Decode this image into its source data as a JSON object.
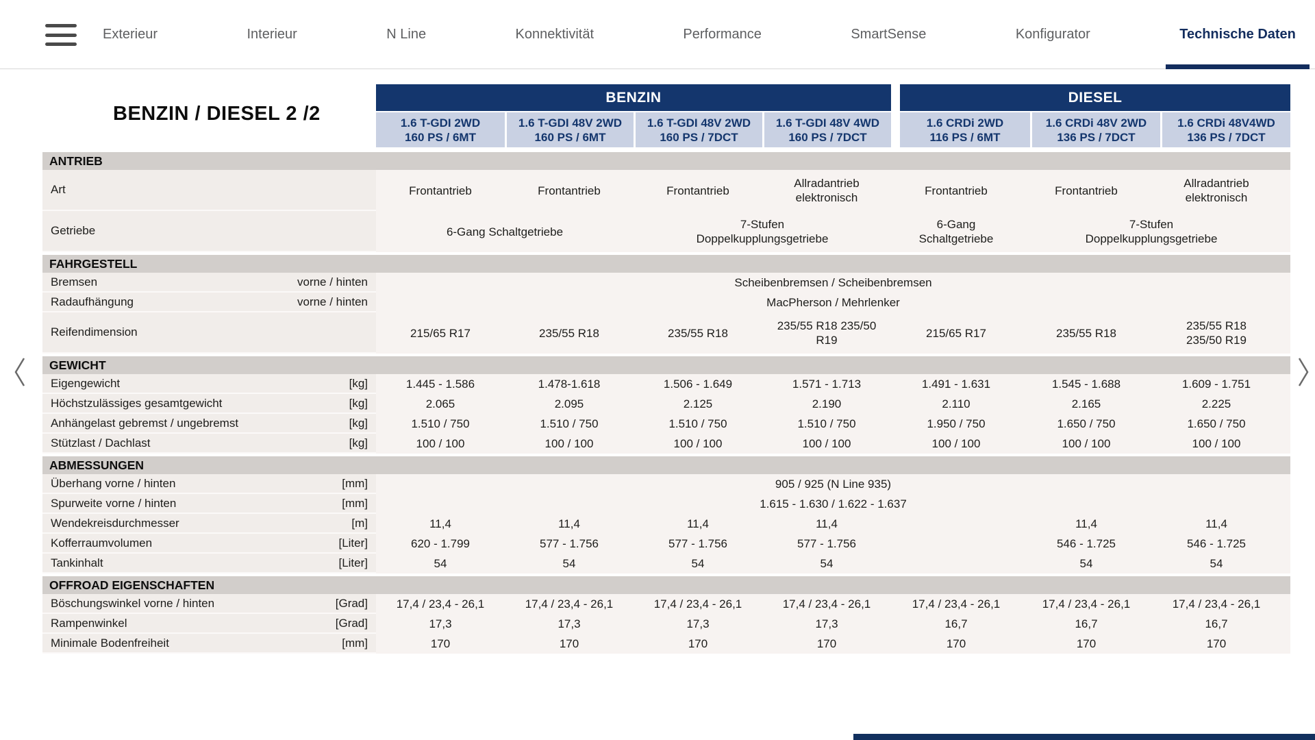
{
  "nav": {
    "items": [
      {
        "label": "Exterieur"
      },
      {
        "label": "Interieur"
      },
      {
        "label": "N Line"
      },
      {
        "label": "Konnektivität"
      },
      {
        "label": "Performance"
      },
      {
        "label": "SmartSense"
      },
      {
        "label": "Konfigurator"
      },
      {
        "label": "Technische Daten"
      }
    ],
    "active": "Technische Daten"
  },
  "table": {
    "title": "BENZIN / DIESEL 2 /2",
    "groups": [
      {
        "label": "BENZIN",
        "span": 4
      },
      {
        "label": "DIESEL",
        "span": 3
      }
    ],
    "columns": [
      {
        "line1": "1.6 T-GDI 2WD",
        "line2": "160 PS / 6MT"
      },
      {
        "line1": "1.6 T-GDI 48V 2WD",
        "line2": "160 PS / 6MT"
      },
      {
        "line1": "1.6 T-GDI 48V 2WD",
        "line2": "160 PS / 7DCT"
      },
      {
        "line1": "1.6 T-GDI 48V 4WD",
        "line2": "160 PS / 7DCT"
      },
      {
        "line1": "1.6 CRDi 2WD",
        "line2": "116 PS / 6MT"
      },
      {
        "line1": "1.6 CRDi 48V 2WD",
        "line2": "136 PS / 7DCT"
      },
      {
        "line1": "1.6 CRDi 48V4WD",
        "line2": "136 PS / 7DCT"
      }
    ],
    "sections": [
      {
        "title": "ANTRIEB",
        "rows": [
          {
            "label": "Art",
            "unit": "",
            "cells": [
              {
                "span": 1,
                "text": "Frontantrieb"
              },
              {
                "span": 1,
                "text": "Frontantrieb"
              },
              {
                "span": 1,
                "text": "Frontantrieb"
              },
              {
                "span": 1,
                "text": "Allradantrieb\nelektronisch"
              },
              {
                "span": 1,
                "text": "Frontantrieb"
              },
              {
                "span": 1,
                "text": "Frontantrieb"
              },
              {
                "span": 1,
                "text": "Allradantrieb\nelektronisch"
              }
            ]
          },
          {
            "label": "Getriebe",
            "unit": "",
            "cells": [
              {
                "span": 2,
                "text": "6-Gang Schaltgetriebe"
              },
              {
                "span": 2,
                "text": "7-Stufen\nDoppelkupplungsgetriebe"
              },
              {
                "span": 1,
                "text": "6-Gang\nSchaltgetriebe"
              },
              {
                "span": 2,
                "text": "7-Stufen\nDoppelkupplungsgetriebe"
              }
            ]
          }
        ]
      },
      {
        "title": "FAHRGESTELL",
        "rows": [
          {
            "label": "Bremsen",
            "unit": "vorne / hinten",
            "cells": [
              {
                "span": 7,
                "text": "Scheibenbremsen / Scheibenbremsen"
              }
            ]
          },
          {
            "label": "Radaufhängung",
            "unit": "vorne / hinten",
            "cells": [
              {
                "span": 7,
                "text": "MacPherson / Mehrlenker"
              }
            ]
          },
          {
            "label": "Reifendimension",
            "unit": "",
            "cells": [
              {
                "span": 1,
                "text": "215/65 R17"
              },
              {
                "span": 1,
                "text": "235/55 R18"
              },
              {
                "span": 1,
                "text": "235/55 R18"
              },
              {
                "span": 1,
                "text": "235/55 R18 235/50\nR19"
              },
              {
                "span": 1,
                "text": "215/65 R17"
              },
              {
                "span": 1,
                "text": "235/55 R18"
              },
              {
                "span": 1,
                "text": "235/55 R18\n235/50 R19"
              }
            ]
          }
        ]
      },
      {
        "title": "GEWICHT",
        "rows": [
          {
            "label": "Eigengewicht",
            "unit": "[kg]",
            "cells": [
              {
                "span": 1,
                "text": "1.445 - 1.586"
              },
              {
                "span": 1,
                "text": "1.478-1.618"
              },
              {
                "span": 1,
                "text": "1.506 - 1.649"
              },
              {
                "span": 1,
                "text": "1.571 - 1.713"
              },
              {
                "span": 1,
                "text": "1.491 - 1.631"
              },
              {
                "span": 1,
                "text": "1.545 - 1.688"
              },
              {
                "span": 1,
                "text": "1.609 - 1.751"
              }
            ]
          },
          {
            "label": "Höchstzulässiges gesamtgewicht",
            "unit": "[kg]",
            "cells": [
              {
                "span": 1,
                "text": "2.065"
              },
              {
                "span": 1,
                "text": "2.095"
              },
              {
                "span": 1,
                "text": "2.125"
              },
              {
                "span": 1,
                "text": "2.190"
              },
              {
                "span": 1,
                "text": "2.110"
              },
              {
                "span": 1,
                "text": "2.165"
              },
              {
                "span": 1,
                "text": "2.225"
              }
            ]
          },
          {
            "label": "Anhängelast gebremst / ungebremst",
            "unit": "[kg]",
            "cells": [
              {
                "span": 1,
                "text": "1.510 / 750"
              },
              {
                "span": 1,
                "text": "1.510 / 750"
              },
              {
                "span": 1,
                "text": "1.510 / 750"
              },
              {
                "span": 1,
                "text": "1.510 / 750"
              },
              {
                "span": 1,
                "text": "1.950 / 750"
              },
              {
                "span": 1,
                "text": "1.650 / 750"
              },
              {
                "span": 1,
                "text": "1.650 / 750"
              }
            ]
          },
          {
            "label": "Stützlast / Dachlast",
            "unit": "[kg]",
            "cells": [
              {
                "span": 1,
                "text": "100 / 100"
              },
              {
                "span": 1,
                "text": "100 / 100"
              },
              {
                "span": 1,
                "text": "100 / 100"
              },
              {
                "span": 1,
                "text": "100 / 100"
              },
              {
                "span": 1,
                "text": "100 / 100"
              },
              {
                "span": 1,
                "text": "100 / 100"
              },
              {
                "span": 1,
                "text": "100 / 100"
              }
            ]
          }
        ]
      },
      {
        "title": "ABMESSUNGEN",
        "rows": [
          {
            "label": "Überhang vorne / hinten",
            "unit": "[mm]",
            "cells": [
              {
                "span": 7,
                "text": "905 / 925 (N Line 935)"
              }
            ]
          },
          {
            "label": "Spurweite vorne / hinten",
            "unit": "[mm]",
            "cells": [
              {
                "span": 7,
                "text": "1.615 - 1.630 / 1.622 - 1.637"
              }
            ]
          },
          {
            "label": "Wendekreisdurchmesser",
            "unit": "[m]",
            "cells": [
              {
                "span": 1,
                "text": "11,4"
              },
              {
                "span": 1,
                "text": "11,4"
              },
              {
                "span": 1,
                "text": "11,4"
              },
              {
                "span": 1,
                "text": "11,4"
              },
              {
                "span": 1,
                "text": ""
              },
              {
                "span": 1,
                "text": "11,4"
              },
              {
                "span": 1,
                "text": "11,4"
              }
            ]
          },
          {
            "label": "Kofferraumvolumen",
            "unit": "[Liter]",
            "cells": [
              {
                "span": 1,
                "text": "620 - 1.799"
              },
              {
                "span": 1,
                "text": "577 - 1.756"
              },
              {
                "span": 1,
                "text": "577 - 1.756"
              },
              {
                "span": 1,
                "text": "577 - 1.756"
              },
              {
                "span": 1,
                "text": ""
              },
              {
                "span": 1,
                "text": "546 - 1.725"
              },
              {
                "span": 1,
                "text": "546 - 1.725"
              }
            ]
          },
          {
            "label": "Tankinhalt",
            "unit": "[Liter]",
            "cells": [
              {
                "span": 1,
                "text": "54"
              },
              {
                "span": 1,
                "text": "54"
              },
              {
                "span": 1,
                "text": "54"
              },
              {
                "span": 1,
                "text": "54"
              },
              {
                "span": 1,
                "text": ""
              },
              {
                "span": 1,
                "text": "54"
              },
              {
                "span": 1,
                "text": "54"
              }
            ]
          }
        ]
      },
      {
        "title": "OFFROAD EIGENSCHAFTEN",
        "rows": [
          {
            "label": "Böschungswinkel vorne / hinten",
            "unit": "[Grad]",
            "cells": [
              {
                "span": 1,
                "text": "17,4 / 23,4 - 26,1"
              },
              {
                "span": 1,
                "text": "17,4 / 23,4 - 26,1"
              },
              {
                "span": 1,
                "text": "17,4 / 23,4 - 26,1"
              },
              {
                "span": 1,
                "text": "17,4 / 23,4 - 26,1"
              },
              {
                "span": 1,
                "text": "17,4 / 23,4 - 26,1"
              },
              {
                "span": 1,
                "text": "17,4 / 23,4 - 26,1"
              },
              {
                "span": 1,
                "text": "17,4 / 23,4 - 26,1"
              }
            ]
          },
          {
            "label": "Rampenwinkel",
            "unit": "[Grad]",
            "cells": [
              {
                "span": 1,
                "text": "17,3"
              },
              {
                "span": 1,
                "text": "17,3"
              },
              {
                "span": 1,
                "text": "17,3"
              },
              {
                "span": 1,
                "text": "17,3"
              },
              {
                "span": 1,
                "text": "16,7"
              },
              {
                "span": 1,
                "text": "16,7"
              },
              {
                "span": 1,
                "text": "16,7"
              }
            ]
          },
          {
            "label": "Minimale Bodenfreiheit",
            "unit": "[mm]",
            "cells": [
              {
                "span": 1,
                "text": "170"
              },
              {
                "span": 1,
                "text": "170"
              },
              {
                "span": 1,
                "text": "170"
              },
              {
                "span": 1,
                "text": "170"
              },
              {
                "span": 1,
                "text": "170"
              },
              {
                "span": 1,
                "text": "170"
              },
              {
                "span": 1,
                "text": "170"
              }
            ]
          }
        ]
      }
    ]
  },
  "colors": {
    "accent_navy": "#14366d",
    "subheader_bg": "#c9d1e3",
    "section_bar_bg": "#d2cecb",
    "label_bg": "#f1edea",
    "value_bg": "#f7f3f1",
    "nav_text": "#5d5e60",
    "active_nav": "#132d5e",
    "text": "#1d1d1b",
    "page_bg": "#ffffff"
  }
}
